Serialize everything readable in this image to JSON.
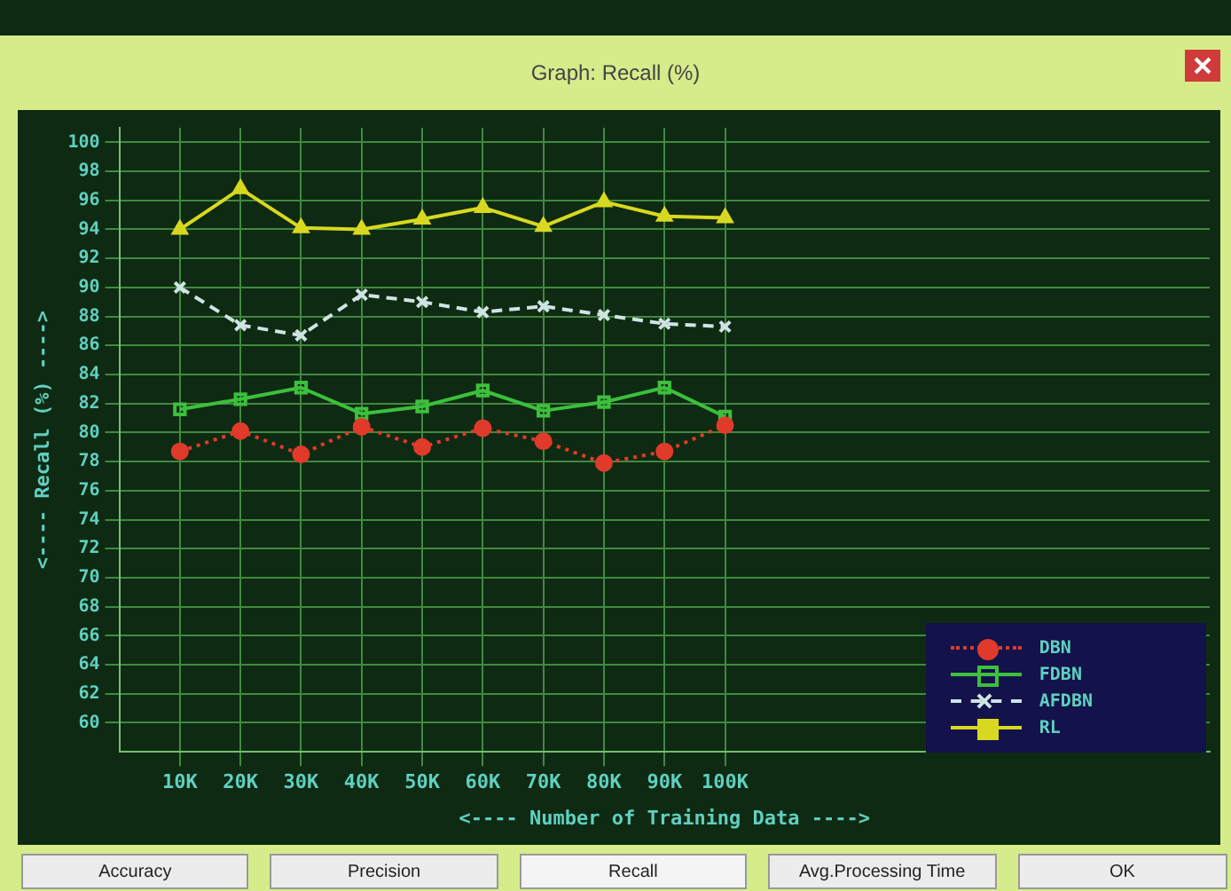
{
  "chart_data": {
    "type": "line",
    "title": "Graph: Recall (%)",
    "xlabel": "<---- Number of Training Data ---->",
    "ylabel": "<---- Recall (%) ---->",
    "x": [
      10000,
      20000,
      30000,
      40000,
      50000,
      60000,
      70000,
      80000,
      90000,
      100000
    ],
    "series": [
      {
        "name": "DBN",
        "color": "#e03a2a",
        "marker": "circle",
        "line_style": "dotted",
        "values": [
          78.7,
          80.1,
          78.5,
          80.4,
          79.0,
          80.3,
          79.4,
          77.9,
          78.7,
          80.5
        ]
      },
      {
        "name": "FDBN",
        "color": "#3cc03c",
        "marker": "square",
        "line_style": "solid",
        "values": [
          81.6,
          82.3,
          83.1,
          81.3,
          81.8,
          82.9,
          81.5,
          82.1,
          83.1,
          81.1
        ]
      },
      {
        "name": "AFDBN",
        "color": "#d0e4e4",
        "marker": "cross",
        "line_style": "dashed",
        "values": [
          90.0,
          87.4,
          86.7,
          89.5,
          89.0,
          88.3,
          88.7,
          88.1,
          87.5,
          87.3
        ]
      },
      {
        "name": "RL",
        "color": "#d8d820",
        "marker": "triangle",
        "line_style": "solid",
        "values": [
          94.0,
          96.8,
          94.1,
          94.0,
          94.7,
          95.5,
          94.2,
          95.9,
          94.9,
          94.8
        ]
      }
    ],
    "xlim": [
      0,
      180000
    ],
    "xticks": [
      {
        "value": 10000,
        "label": "10K"
      },
      {
        "value": 20000,
        "label": "20K"
      },
      {
        "value": 30000,
        "label": "30K"
      },
      {
        "value": 40000,
        "label": "40K"
      },
      {
        "value": 50000,
        "label": "50K"
      },
      {
        "value": 60000,
        "label": "60K"
      },
      {
        "value": 70000,
        "label": "70K"
      },
      {
        "value": 80000,
        "label": "80K"
      },
      {
        "value": 90000,
        "label": "90K"
      },
      {
        "value": 100000,
        "label": "100K"
      }
    ],
    "ylim": [
      58,
      101
    ],
    "yticks": [
      60,
      62,
      64,
      66,
      68,
      70,
      72,
      74,
      76,
      78,
      80,
      82,
      84,
      86,
      88,
      90,
      92,
      94,
      96,
      98,
      100
    ],
    "grid": true,
    "legend": "bottom right",
    "annotations": [
      "Accuracy",
      "Precision",
      "Recall",
      "Avg.Processing Time",
      "OK"
    ]
  }
}
